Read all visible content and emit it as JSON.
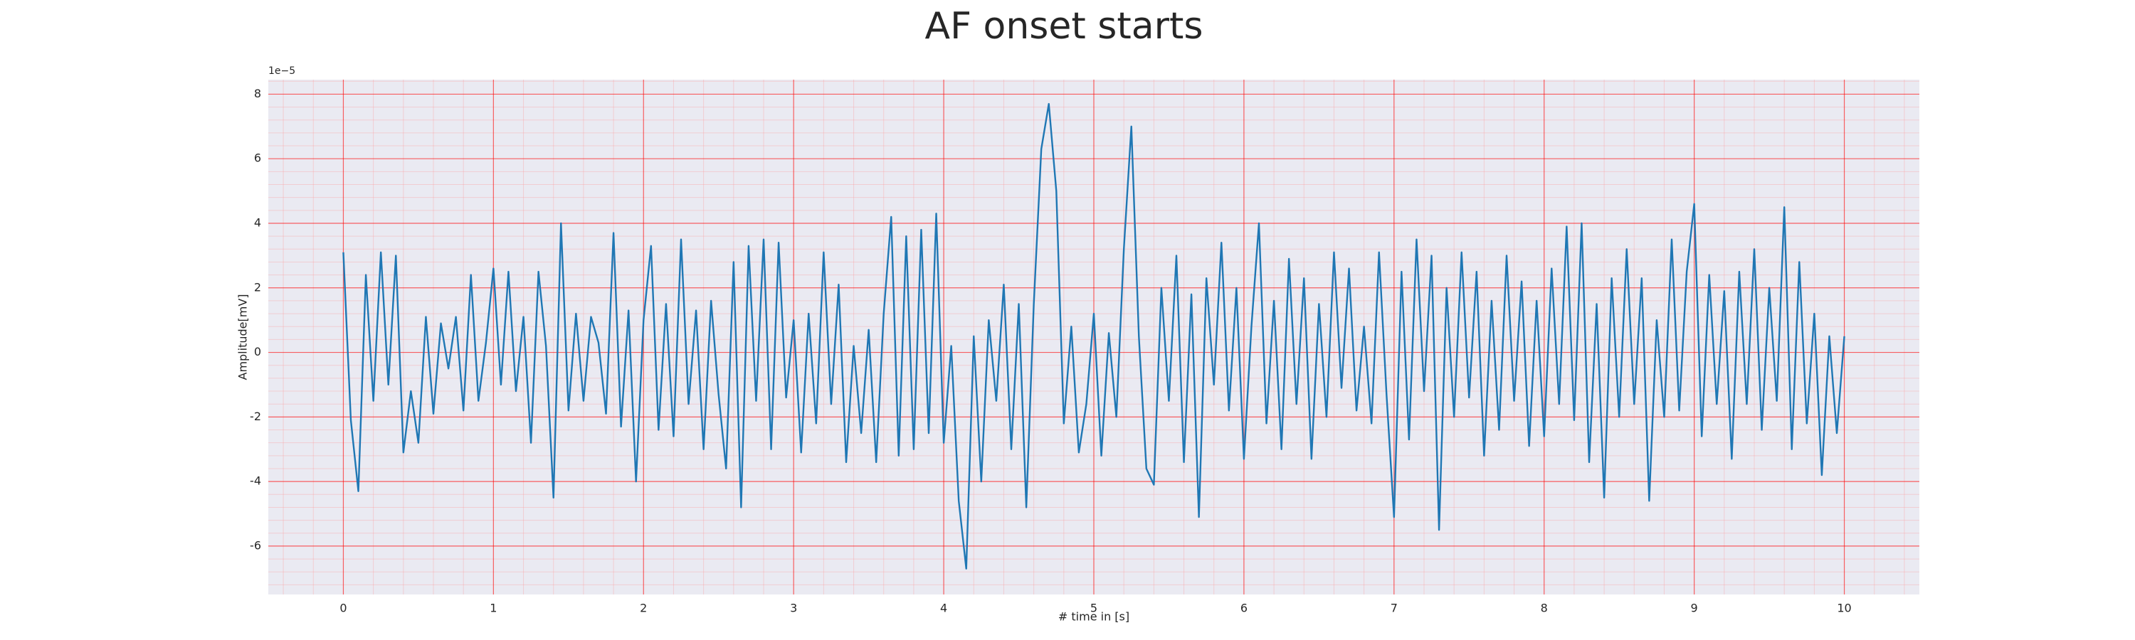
{
  "chart_data": {
    "type": "line",
    "title": "AF onset starts",
    "xlabel": "# time in [s]",
    "ylabel": "Amplitude[mV]",
    "y_offset_label": "1e−5",
    "color": "#1f77b4",
    "xlim": [
      -0.5,
      10.5
    ],
    "ylim": [
      -7.5,
      8.45
    ],
    "xticks": [
      0,
      1,
      2,
      3,
      4,
      5,
      6,
      7,
      8,
      9,
      10
    ],
    "yticks": [
      -6,
      -4,
      -2,
      0,
      2,
      4,
      6,
      8
    ],
    "xminorticks": [
      -0.4,
      -0.2,
      0.2,
      0.4,
      0.6,
      0.8,
      1.2,
      1.4,
      1.6,
      1.8,
      2.2,
      2.4,
      2.6,
      2.8,
      3.2,
      3.4,
      3.6,
      3.8,
      4.2,
      4.4,
      4.6,
      4.8,
      5.2,
      5.4,
      5.6,
      5.8,
      6.2,
      6.4,
      6.6,
      6.8,
      7.2,
      7.4,
      7.6,
      7.8,
      8.2,
      8.4,
      8.6,
      8.8,
      9.2,
      9.4,
      9.6,
      9.8,
      10.2,
      10.4
    ],
    "yminorticks": [
      -7.2,
      -6.8,
      -6.4,
      -5.6,
      -5.2,
      -4.8,
      -4.4,
      -3.6,
      -3.2,
      -2.8,
      -2.4,
      -1.6,
      -1.2,
      -0.8,
      -0.4,
      0.4,
      0.8,
      1.2,
      1.6,
      2.4,
      2.8,
      3.2,
      3.6,
      4.4,
      4.8,
      5.2,
      5.6,
      6.4,
      6.8,
      7.2,
      7.6,
      8.4
    ],
    "grid": true,
    "minor_grid": true,
    "x": [
      0,
      0.05,
      0.1,
      0.15,
      0.2,
      0.25,
      0.3,
      0.35,
      0.4,
      0.45,
      0.5,
      0.55,
      0.6,
      0.65,
      0.7,
      0.75,
      0.8,
      0.85,
      0.9,
      0.95,
      1,
      1.05,
      1.1,
      1.15,
      1.2,
      1.25,
      1.3,
      1.35,
      1.4,
      1.45,
      1.5,
      1.55,
      1.6,
      1.65,
      1.7,
      1.75,
      1.8,
      1.85,
      1.9,
      1.95,
      2,
      2.05,
      2.1,
      2.15,
      2.2,
      2.25,
      2.3,
      2.35,
      2.4,
      2.45,
      2.5,
      2.55,
      2.6,
      2.65,
      2.7,
      2.75,
      2.8,
      2.85,
      2.9,
      2.95,
      3,
      3.05,
      3.1,
      3.15,
      3.2,
      3.25,
      3.3,
      3.35,
      3.4,
      3.45,
      3.5,
      3.55,
      3.6,
      3.65,
      3.7,
      3.75,
      3.8,
      3.85,
      3.9,
      3.95,
      4,
      4.05,
      4.1,
      4.15,
      4.2,
      4.25,
      4.3,
      4.35,
      4.4,
      4.45,
      4.5,
      4.55,
      4.6,
      4.65,
      4.7,
      4.75,
      4.8,
      4.85,
      4.9,
      4.95,
      5,
      5.05,
      5.1,
      5.15,
      5.2,
      5.25,
      5.3,
      5.35,
      5.4,
      5.45,
      5.5,
      5.55,
      5.6,
      5.65,
      5.7,
      5.75,
      5.8,
      5.85,
      5.9,
      5.95,
      6,
      6.05,
      6.1,
      6.15,
      6.2,
      6.25,
      6.3,
      6.35,
      6.4,
      6.45,
      6.5,
      6.55,
      6.6,
      6.65,
      6.7,
      6.75,
      6.8,
      6.85,
      6.9,
      6.95,
      7,
      7.05,
      7.1,
      7.15,
      7.2,
      7.25,
      7.3,
      7.35,
      7.4,
      7.45,
      7.5,
      7.55,
      7.6,
      7.65,
      7.7,
      7.75,
      7.8,
      7.85,
      7.9,
      7.95,
      8,
      8.05,
      8.1,
      8.15,
      8.2,
      8.25,
      8.3,
      8.35,
      8.4,
      8.45,
      8.5,
      8.55,
      8.6,
      8.65,
      8.7,
      8.75,
      8.8,
      8.85,
      8.9,
      8.95,
      9,
      9.05,
      9.1,
      9.15,
      9.2,
      9.25,
      9.3,
      9.35,
      9.4,
      9.45,
      9.5,
      9.55,
      9.6,
      9.65,
      9.7,
      9.75,
      9.8,
      9.85,
      9.9,
      9.95,
      10
    ],
    "values": [
      3.1,
      -2.1,
      -4.3,
      2.4,
      -1.5,
      3.1,
      -1.0,
      3.0,
      -3.1,
      -1.2,
      -2.8,
      1.1,
      -1.9,
      0.9,
      -0.5,
      1.1,
      -1.8,
      2.4,
      -1.5,
      0.3,
      2.6,
      -1.0,
      2.5,
      -1.2,
      1.1,
      -2.8,
      2.5,
      0.2,
      -4.5,
      4.0,
      -1.8,
      1.2,
      -1.5,
      1.1,
      0.3,
      -1.9,
      3.7,
      -2.3,
      1.3,
      -4.0,
      1.0,
      3.3,
      -2.4,
      1.5,
      -2.6,
      3.5,
      -1.6,
      1.3,
      -3.0,
      1.6,
      -1.3,
      -3.6,
      2.8,
      -4.8,
      3.3,
      -1.5,
      3.5,
      -3.0,
      3.4,
      -1.4,
      1.0,
      -3.1,
      1.2,
      -2.2,
      3.1,
      -1.6,
      2.1,
      -3.4,
      0.2,
      -2.5,
      0.7,
      -3.4,
      1.2,
      4.2,
      -3.2,
      3.6,
      -3.0,
      3.8,
      -2.5,
      4.3,
      -2.8,
      0.2,
      -4.6,
      -6.7,
      0.5,
      -4.0,
      1.0,
      -1.5,
      2.1,
      -3.0,
      1.5,
      -4.8,
      1.5,
      6.3,
      7.7,
      5.0,
      -2.2,
      0.8,
      -3.1,
      -1.6,
      1.2,
      -3.2,
      0.6,
      -2.0,
      3.2,
      7.0,
      0.5,
      -3.6,
      -4.1,
      2.0,
      -1.5,
      3.0,
      -3.4,
      1.8,
      -5.1,
      2.3,
      -1.0,
      3.4,
      -1.8,
      2.0,
      -3.3,
      0.8,
      4.0,
      -2.2,
      1.6,
      -3.0,
      2.9,
      -1.6,
      2.3,
      -3.3,
      1.5,
      -2.0,
      3.1,
      -1.1,
      2.6,
      -1.8,
      0.8,
      -2.2,
      3.1,
      -1.3,
      -5.1,
      2.5,
      -2.7,
      3.5,
      -1.2,
      3.0,
      -5.5,
      2.0,
      -2.0,
      3.1,
      -1.4,
      2.5,
      -3.2,
      1.6,
      -2.4,
      3.0,
      -1.5,
      2.2,
      -2.9,
      1.6,
      -2.6,
      2.6,
      -1.6,
      3.9,
      -2.1,
      4.0,
      -3.4,
      1.5,
      -4.5,
      2.3,
      -2.0,
      3.2,
      -1.6,
      2.3,
      -4.6,
      1.0,
      -2.0,
      3.5,
      -1.8,
      2.5,
      4.6,
      -2.6,
      2.4,
      -1.6,
      1.9,
      -3.3,
      2.5,
      -1.6,
      3.2,
      -2.4,
      2.0,
      -1.5,
      4.5,
      -3.0,
      2.8,
      -2.2,
      1.2,
      -3.8,
      0.5,
      -2.5,
      0.5
    ]
  }
}
